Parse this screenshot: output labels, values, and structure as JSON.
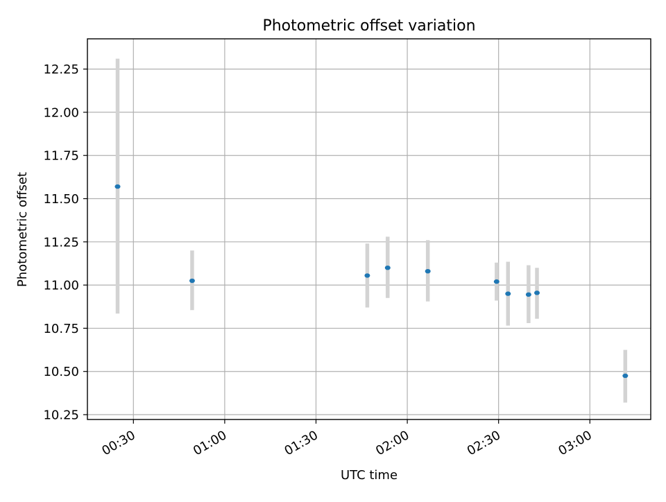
{
  "chart_data": {
    "type": "scatter",
    "title": "Photometric offset variation",
    "xlabel": "UTC time",
    "ylabel": "Photometric offset",
    "x_axis_kind": "time",
    "xlim": [
      "00:14:53",
      "03:20:00"
    ],
    "ylim": [
      10.222,
      12.425
    ],
    "grid": true,
    "colors": {
      "point": "#1f77b4",
      "errorbar": "#d3d3d3",
      "grid": "#b0b0b0"
    },
    "x_ticks": [
      "00:30",
      "01:00",
      "01:30",
      "02:00",
      "02:30",
      "03:00"
    ],
    "y_ticks": [
      "10.25",
      "10.50",
      "10.75",
      "11.00",
      "11.25",
      "11.50",
      "11.75",
      "12.00",
      "12.25"
    ],
    "points": [
      {
        "x": "00:24:48",
        "y": 11.57,
        "ylow": 10.835,
        "yhigh": 12.31
      },
      {
        "x": "00:49:18",
        "y": 11.025,
        "ylow": 10.855,
        "yhigh": 11.2
      },
      {
        "x": "01:46:51",
        "y": 11.055,
        "ylow": 10.87,
        "yhigh": 11.24
      },
      {
        "x": "01:53:33",
        "y": 11.1,
        "ylow": 10.925,
        "yhigh": 11.28
      },
      {
        "x": "02:06:45",
        "y": 11.08,
        "ylow": 10.905,
        "yhigh": 11.26
      },
      {
        "x": "02:29:21",
        "y": 11.02,
        "ylow": 10.91,
        "yhigh": 11.13
      },
      {
        "x": "02:33:06",
        "y": 10.95,
        "ylow": 10.765,
        "yhigh": 11.135
      },
      {
        "x": "02:39:51",
        "y": 10.945,
        "ylow": 10.78,
        "yhigh": 11.115
      },
      {
        "x": "02:42:37",
        "y": 10.955,
        "ylow": 10.805,
        "yhigh": 11.1
      },
      {
        "x": "03:11:38",
        "y": 10.475,
        "ylow": 10.32,
        "yhigh": 10.625
      }
    ]
  }
}
